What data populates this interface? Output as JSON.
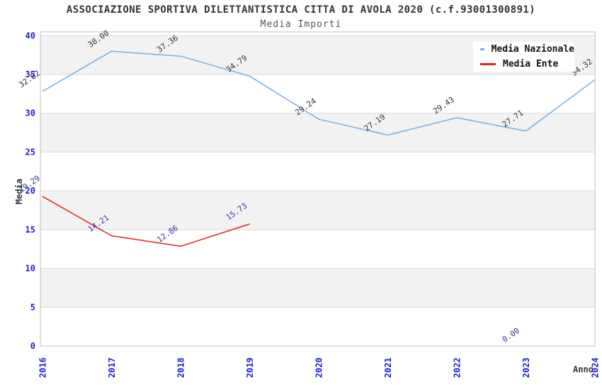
{
  "header": {
    "title": "ASSOCIAZIONE SPORTIVA DILETTANTISTICA CITTA DI AVOLA 2020 (c.f.93001300891)",
    "subtitle": "Media Importi"
  },
  "legend": {
    "items": [
      {
        "label": "Media Nazionale",
        "color": "#79ade2"
      },
      {
        "label": "Media Ente",
        "color": "#e81f1f"
      }
    ]
  },
  "chart_data": {
    "type": "line",
    "title": "Media Importi",
    "xlabel": "Anno",
    "ylabel": "Media",
    "x": [
      2016,
      2017,
      2018,
      2019,
      2020,
      2021,
      2022,
      2023,
      2024
    ],
    "yticks": [
      0,
      5,
      10,
      15,
      20,
      25,
      30,
      35,
      40
    ],
    "ylim": [
      0,
      40.5
    ],
    "grid": "alternating horizontal gray bands every 5 units",
    "legend_position": "top-right",
    "series": [
      {
        "name": "Media Nazionale",
        "color": "#79ade2",
        "label_color": "#33333e",
        "values": [
          32.82,
          38.0,
          37.36,
          34.79,
          29.24,
          27.19,
          29.43,
          27.71,
          34.32
        ]
      },
      {
        "name": "Media Ente",
        "color": "#e81f1f",
        "label_color": "#3636a3",
        "values": [
          19.29,
          14.21,
          12.86,
          15.73,
          null,
          null,
          null,
          0.0,
          null
        ]
      }
    ]
  },
  "axis": {
    "tick_color": "#1c1cd6",
    "frame_color": "#c0c0c0",
    "grid_color": "#dadada",
    "band_color": "#f2f2f2",
    "axis_title_color": "#333333"
  }
}
